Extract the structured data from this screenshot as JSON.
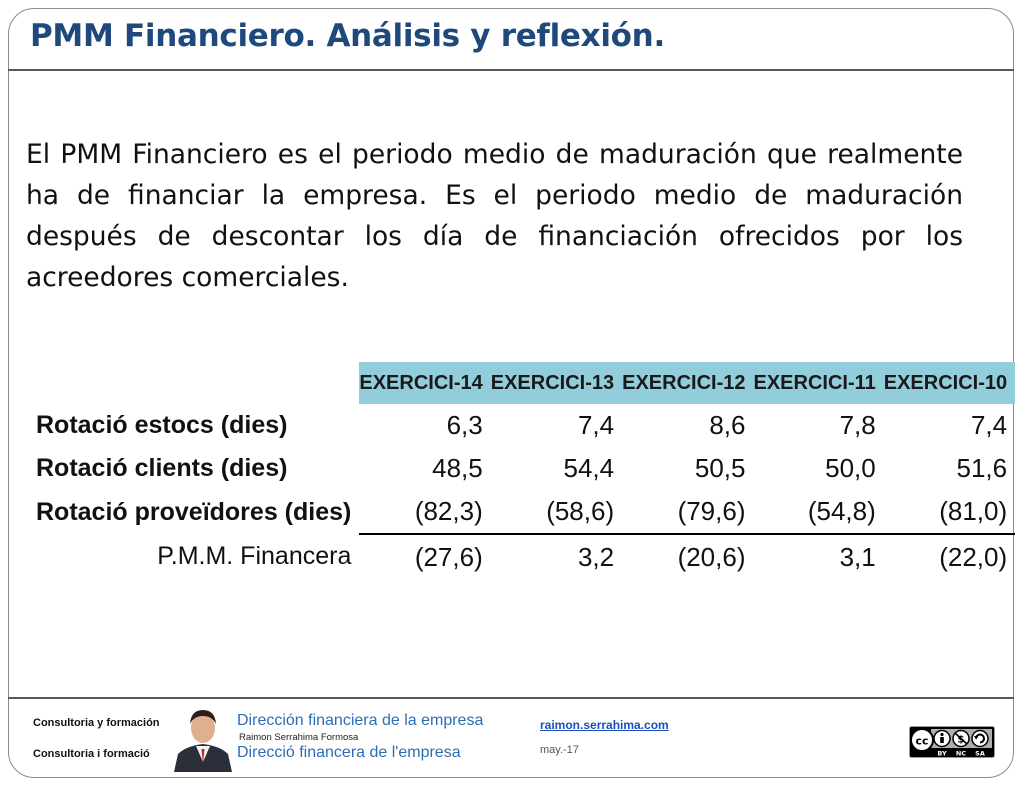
{
  "title": "PMM Financiero. Análisis y reflexión.",
  "intro": "El PMM Financiero es el periodo medio de maduración que realmente ha de financiar la empresa. Es el periodo medio de maduración después de descontar los día de financiación ofrecidos por los acreedores comerciales.",
  "table": {
    "headers": [
      "EXERCICI-14",
      "EXERCICI-13",
      "EXERCICI-12",
      "EXERCICI-11",
      "EXERCICI-10"
    ],
    "rows": [
      {
        "label": "Rotació estocs (dies)",
        "values": [
          "6,3",
          "7,4",
          "8,6",
          "7,8",
          "7,4"
        ]
      },
      {
        "label": "Rotació clients (dies)",
        "values": [
          "48,5",
          "54,4",
          "50,5",
          "50,0",
          "51,6"
        ]
      },
      {
        "label": "Rotació proveïdores (dies)",
        "values": [
          "(82,3)",
          "(58,6)",
          "(79,6)",
          "(54,8)",
          "(81,0)"
        ]
      },
      {
        "label": "P.M.M. Financera",
        "values": [
          "(27,6)",
          "3,2",
          "(20,6)",
          "3,1",
          "(22,0)"
        ]
      }
    ]
  },
  "footer": {
    "left_es": "Consultoria y formación",
    "left_ca": "Consultoria i formació",
    "title_es": "Dirección financiera de la empresa",
    "author": "Raimon Serrahima Formosa",
    "title_ca": "Direcció financera de l'empresa",
    "link": "raimon.serrahima.com",
    "date": "may.-17",
    "license_labels": [
      "BY",
      "NC",
      "SA"
    ]
  },
  "colors": {
    "title": "#1f497d",
    "header_bg": "#92cddc",
    "negative": "#e03030",
    "footer_blue": "#2e6db4"
  }
}
